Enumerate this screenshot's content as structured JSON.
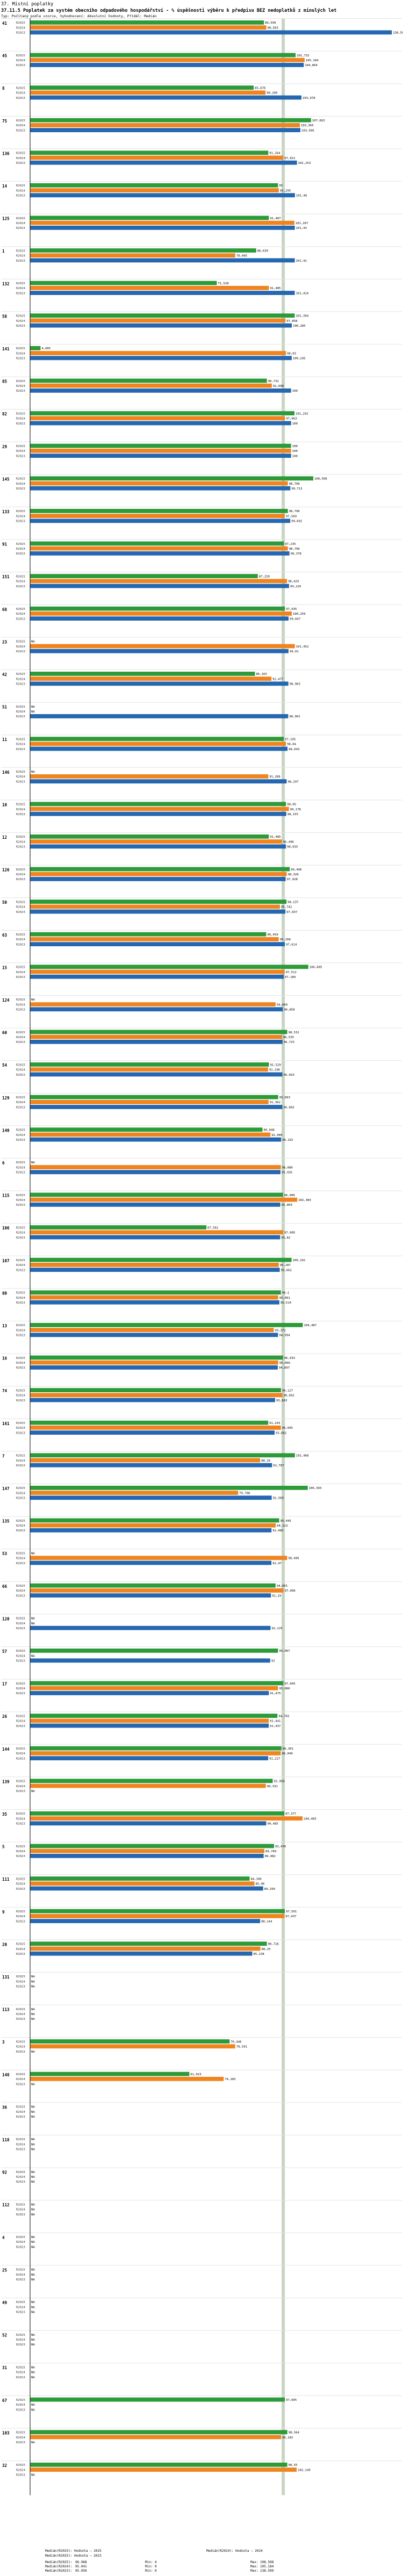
{
  "header": {
    "line1": "37. Místní poplatky",
    "line2": "37.11.5 Poplatek za systém obecního odpadového hospodářství - % úspěšnosti výběru k předpisu BEZ nedoplatků z minulých let",
    "line3": "Typ: Počítaný podle vzorce, Vyhodnocení: Absolutní hodnoty, Příděl: Medián"
  },
  "colors": {
    "r2025": "#2d9b3a",
    "r2024": "#f0851f",
    "r2023": "#2567b0",
    "median": "#c8d4c4",
    "axis": "#000000"
  },
  "chart_data": {
    "type": "bar",
    "orientation": "horizontal",
    "title": "37.11.5 Poplatek za systém obecního odpadového hospodářství - % úspěšnosti výběru k předpisu BEZ nedoplatků z minulých let",
    "xlabel": "%",
    "xlim": [
      0,
      140
    ],
    "median_value": 97,
    "series_names": [
      "R2025",
      "R2024",
      "R2023"
    ],
    "groups": [
      {
        "label": "41",
        "values": [
          89.599,
          90.503,
          138.599
        ]
      },
      {
        "label": "45",
        "values": [
          101.732,
          105.184,
          104.864
        ]
      },
      {
        "label": "8",
        "values": [
          85.676,
          90.209,
          103.978
        ]
      },
      {
        "label": "75",
        "values": [
          107.663,
          103.365,
          103.566
        ]
      },
      {
        "label": "136",
        "values": [
          91.264,
          97.021,
          102.253
        ]
      },
      {
        "label": "14",
        "values": [
          95.0,
          95.295,
          101.48
        ]
      },
      {
        "label": "125",
        "values": [
          91.487,
          101.267,
          101.43
        ]
      },
      {
        "label": "1",
        "values": [
          86.639,
          78.605,
          101.42
        ]
      },
      {
        "label": "132",
        "values": [
          71.528,
          91.485,
          101.414
        ]
      },
      {
        "label": "58",
        "values": [
          101.394,
          97.858,
          100.285
        ]
      },
      {
        "label": "141",
        "values": [
          4.005,
          98.03,
          100.245
        ]
      },
      {
        "label": "85",
        "values": [
          90.732,
          92.608,
          100.0
        ]
      },
      {
        "label": "82",
        "values": [
          101.292,
          97.663,
          100.0
        ]
      },
      {
        "label": "29",
        "values": [
          100.0,
          100.0,
          100.0
        ]
      },
      {
        "label": "145",
        "values": [
          108.508,
          98.766,
          99.713
        ]
      },
      {
        "label": "133",
        "values": [
          98.766,
          97.569,
          99.692
        ]
      },
      {
        "label": "91",
        "values": [
          97.235,
          98.766,
          99.378
        ]
      },
      {
        "label": "151",
        "values": [
          87.259,
          98.429,
          99.229
        ]
      },
      {
        "label": "68",
        "values": [
          97.635,
          100.259,
          99.047
        ]
      },
      {
        "label": "23",
        "values": [
          null,
          101.452,
          99.01
        ]
      },
      {
        "label": "42",
        "values": [
          86.163,
          92.477,
          98.963
        ]
      },
      {
        "label": "51",
        "values": [
          null,
          null,
          98.901
        ]
      },
      {
        "label": "11",
        "values": [
          97.195,
          98.04,
          98.643
        ]
      },
      {
        "label": "146",
        "values": [
          null,
          91.289,
          98.297
        ]
      },
      {
        "label": "10",
        "values": [
          98.05,
          99.178,
          98.155
        ]
      },
      {
        "label": "12",
        "values": [
          91.485,
          96.496,
          98.035
        ]
      },
      {
        "label": "126",
        "values": [
          99.496,
          98.326,
          97.928
        ]
      },
      {
        "label": "50",
        "values": [
          98.237,
          95.742,
          97.837
        ]
      },
      {
        "label": "63",
        "values": [
          90.459,
          95.268,
          97.614
        ]
      },
      {
        "label": "15",
        "values": [
          106.605,
          97.512,
          97.189
        ]
      },
      {
        "label": "124",
        "values": [
          null,
          94.069,
          96.858
        ]
      },
      {
        "label": "60",
        "values": [
          98.532,
          96.535,
          96.725
        ]
      },
      {
        "label": "54",
        "values": [
          91.529,
          91.196,
          96.693
        ]
      },
      {
        "label": "129",
        "values": [
          95.063,
          91.362,
          96.665
        ]
      },
      {
        "label": "140",
        "values": [
          89.048,
          92.089,
          96.192
        ]
      },
      {
        "label": "6",
        "values": [
          null,
          96.086,
          95.935
        ]
      },
      {
        "label": "115",
        "values": [
          96.906,
          102.383,
          95.869
        ]
      },
      {
        "label": "106",
        "values": [
          67.561,
          97.005,
          95.82
        ]
      },
      {
        "label": "107",
        "values": [
          100.192,
          95.287,
          95.662
        ]
      },
      {
        "label": "80",
        "values": [
          96.1,
          95.061,
          95.514
        ]
      },
      {
        "label": "13",
        "values": [
          104.487,
          93.372,
          94.994
        ]
      },
      {
        "label": "16",
        "values": [
          96.933,
          95.066,
          94.897
        ]
      },
      {
        "label": "74",
        "values": [
          96.127,
          96.692,
          93.883
        ]
      },
      {
        "label": "161",
        "values": [
          91.243,
          96.095,
          93.682
        ]
      },
      {
        "label": "7",
        "values": [
          101.468,
          88.16,
          92.707
        ]
      },
      {
        "label": "147",
        "values": [
          106.393,
          79.708,
          92.569
        ]
      },
      {
        "label": "135",
        "values": [
          95.445,
          94.113,
          92.485
        ]
      },
      {
        "label": "53",
        "values": [
          null,
          98.496,
          92.47
        ]
      },
      {
        "label": "66",
        "values": [
          94.055,
          97.096,
          92.29
        ]
      },
      {
        "label": "120",
        "values": [
          null,
          null,
          92.125
        ]
      },
      {
        "label": "57",
        "values": [
          95.007,
          null,
          92.0
        ]
      },
      {
        "label": "17",
        "values": [
          97.045,
          95.006,
          91.475
        ]
      },
      {
        "label": "26",
        "values": [
          94.765,
          91.441,
          91.437
        ]
      },
      {
        "label": "144",
        "values": [
          96.301,
          96.049,
          91.227
        ]
      },
      {
        "label": "139",
        "values": [
          92.956,
          90.331,
          null
        ]
      },
      {
        "label": "35",
        "values": [
          97.377,
          104.405,
          90.485
        ]
      },
      {
        "label": "5",
        "values": [
          93.476,
          89.769,
          89.482
        ]
      },
      {
        "label": "111",
        "values": [
          84.106,
          85.96,
          89.299
        ]
      },
      {
        "label": "9",
        "values": [
          97.591,
          97.437,
          88.144
        ]
      },
      {
        "label": "20",
        "values": [
          90.726,
          88.25,
          85.138
        ]
      },
      {
        "label": "131",
        "values": [
          null,
          null,
          null
        ]
      },
      {
        "label": "113",
        "values": [
          null,
          null,
          null
        ]
      },
      {
        "label": "3",
        "values": [
          76.446,
          78.591,
          null
        ]
      },
      {
        "label": "148",
        "values": [
          61.023,
          74.183,
          null
        ]
      },
      {
        "label": "36",
        "values": [
          null,
          null,
          null
        ]
      },
      {
        "label": "118",
        "values": [
          null,
          null,
          null
        ]
      },
      {
        "label": "92",
        "values": [
          null,
          null,
          null
        ]
      },
      {
        "label": "112",
        "values": [
          null,
          null,
          null
        ]
      },
      {
        "label": "4",
        "values": [
          null,
          null,
          null
        ]
      },
      {
        "label": "25",
        "values": [
          null,
          null,
          null
        ]
      },
      {
        "label": "49",
        "values": [
          null,
          null,
          null
        ]
      },
      {
        "label": "52",
        "values": [
          null,
          null,
          null
        ]
      },
      {
        "label": "31",
        "values": [
          null,
          null,
          null
        ]
      },
      {
        "label": "67",
        "values": [
          97.605,
          null,
          null
        ]
      },
      {
        "label": "103",
        "values": [
          98.564,
          96.182,
          null
        ]
      },
      {
        "label": "32",
        "values": [
          98.55,
          102.149,
          null
        ]
      }
    ]
  },
  "footer": {
    "col1": [
      "Medián(R2025): Hodnota – 2025",
      "Medián(R2024): Hodnota – 2024"
    ],
    "col2": [
      "Medián(R2025): Hodnota – 2023"
    ],
    "stats_labels": [
      "Medián(R2025):",
      "Medián(R2024):",
      "Medián(R2023):"
    ],
    "stats_median": [
      "96.968",
      "95.041",
      "95.050"
    ],
    "stats_min": [
      "Min: 4",
      "Min: 0",
      "Min: 0"
    ],
    "stats_max": [
      "Max: 108.508",
      "Max: 105.184",
      "Max: 138.599"
    ]
  }
}
